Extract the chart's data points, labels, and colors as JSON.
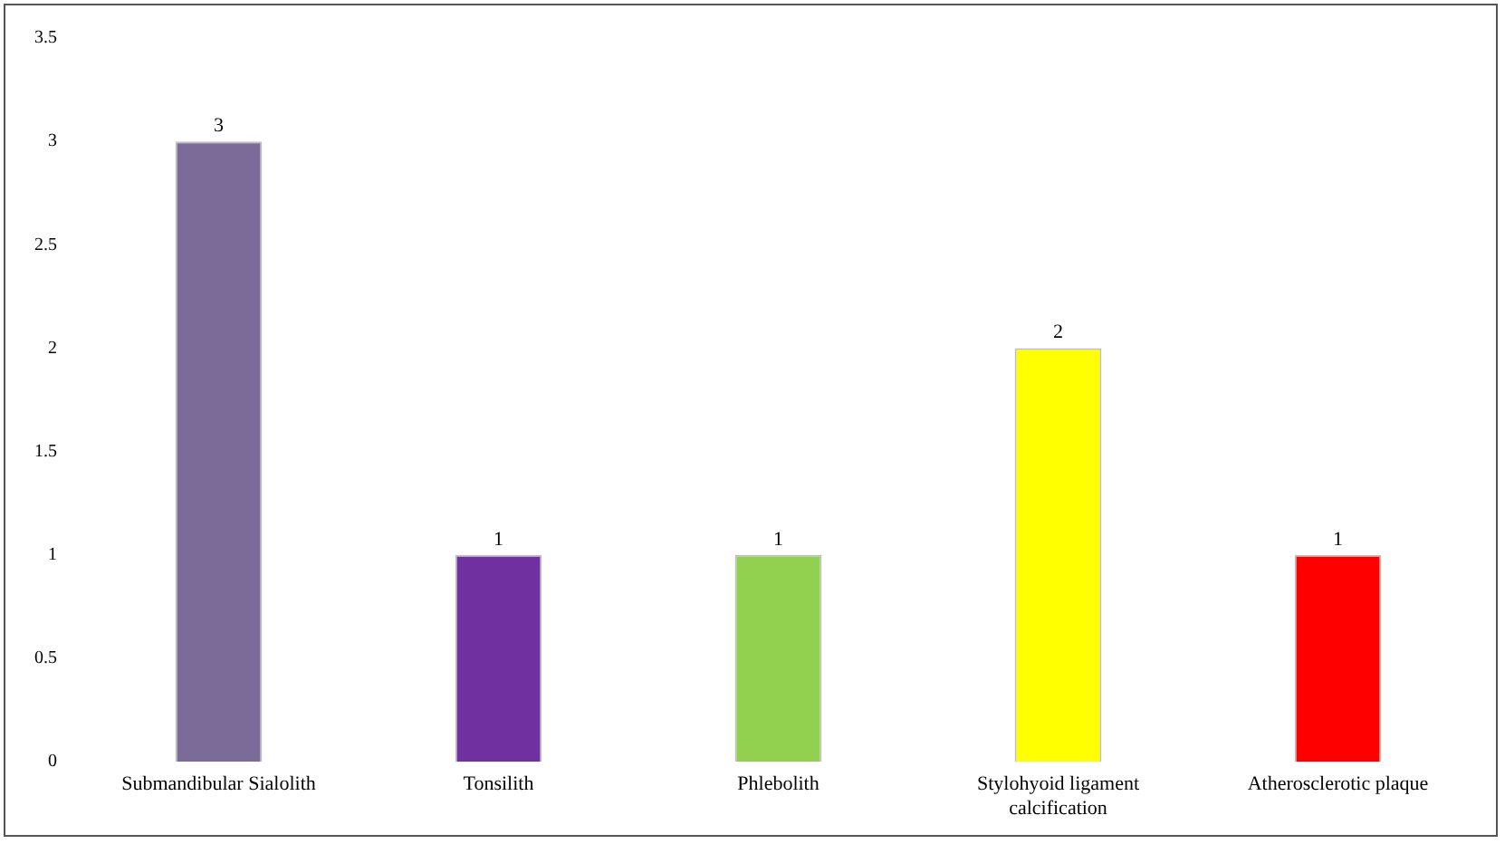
{
  "chart_data": {
    "type": "bar",
    "categories": [
      "Submandibular Sialolith",
      "Tonsilith",
      "Phlebolith",
      "Stylohyoid ligament calcification",
      "Atherosclerotic plaque"
    ],
    "values": [
      3,
      1,
      1,
      2,
      1
    ],
    "colors": [
      "#7b6b98",
      "#7030a0",
      "#92d050",
      "#ffff00",
      "#ff0000"
    ],
    "ylim": [
      0,
      3.5
    ],
    "yticks": [
      0,
      0.5,
      1,
      1.5,
      2,
      2.5,
      3,
      3.5
    ],
    "grid": false,
    "legend": false,
    "data_labels": true
  }
}
